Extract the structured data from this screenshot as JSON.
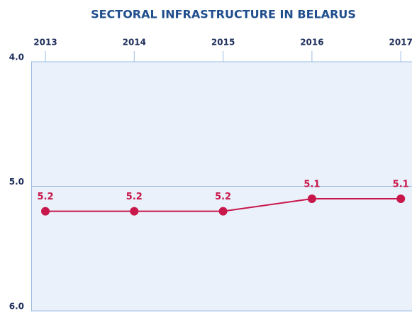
{
  "chart_data": {
    "type": "line",
    "title": "SECTORAL INFRASTRUCTURE IN BELARUS",
    "categories": [
      "2013",
      "2014",
      "2015",
      "2016",
      "2017"
    ],
    "series": [
      {
        "name": "Belarus",
        "color": "#c8174a",
        "values": [
          5.2,
          5.2,
          5.2,
          5.1,
          5.1
        ]
      }
    ],
    "ylim": [
      4.0,
      6.0
    ],
    "y_inverted": true,
    "yticks": [
      {
        "value": 4.0,
        "label": "4.0"
      },
      {
        "value": 5.0,
        "label": "5.0"
      },
      {
        "value": 6.0,
        "label": "6.0"
      }
    ],
    "grid": true
  }
}
